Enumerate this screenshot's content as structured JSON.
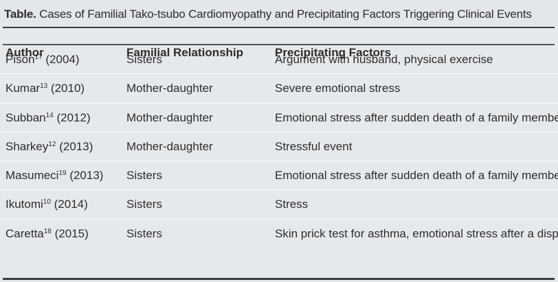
{
  "table": {
    "caption_lead": "Table.",
    "caption_text": " Cases of Familial Tako-tsubo Cardiomyopathy and Precipitating Factors Triggering Clinical Events",
    "headers": [
      "Author",
      "Familial Relationship",
      "Precipitating Factors"
    ],
    "rows": [
      {
        "author": "Pison",
        "ref": "17",
        "year": " (2004)",
        "relationship": "Sisters",
        "factors": "Argument with husband, physical exercise"
      },
      {
        "author": "Kumar",
        "ref": "13",
        "year": " (2010)",
        "relationship": "Mother-daughter",
        "factors": "Severe emotional stress"
      },
      {
        "author": "Subban",
        "ref": "14",
        "year": " (2012)",
        "relationship": "Mother-daughter",
        "factors": "Emotional stress after sudden death of a family member"
      },
      {
        "author": "Sharkey",
        "ref": "12",
        "year": " (2013)",
        "relationship": "Mother-daughter",
        "factors": "Stressful event"
      },
      {
        "author": "Masumeci",
        "ref": "19",
        "year": " (2013)",
        "relationship": "Sisters",
        "factors": "Emotional stress after sudden death of a family member"
      },
      {
        "author": "Ikutomi",
        "ref": "10",
        "year": " (2014)",
        "relationship": "Sisters",
        "factors": "Stress"
      },
      {
        "author": "Caretta",
        "ref": "18",
        "year": " (2015)",
        "relationship": "Sisters",
        "factors": "Skin prick test for asthma, emotional stress after a dispute"
      }
    ]
  }
}
